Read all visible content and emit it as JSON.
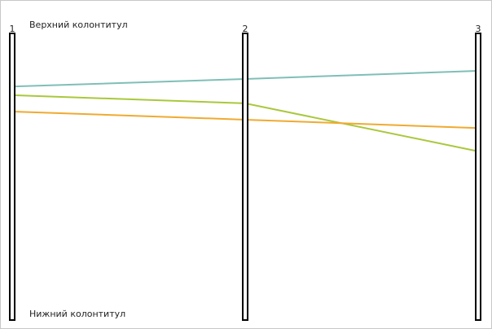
{
  "header_label": "Верхний колонтитул",
  "footer_label": "Нижний колонтитул",
  "chart_data": {
    "type": "line",
    "subtype": "parallel-coordinates",
    "categories": [
      "1",
      "2",
      "3"
    ],
    "ylim": [
      0,
      100
    ],
    "grid": false,
    "legend": "none",
    "series": [
      {
        "color": "#7fbfb7",
        "values": [
          81.5,
          84.1,
          86.9
        ]
      },
      {
        "color": "#a9c83c",
        "values": [
          78.4,
          75.6,
          59.1
        ]
      },
      {
        "color": "#f0aa30",
        "values": [
          72.7,
          69.9,
          67.0
        ]
      }
    ]
  }
}
